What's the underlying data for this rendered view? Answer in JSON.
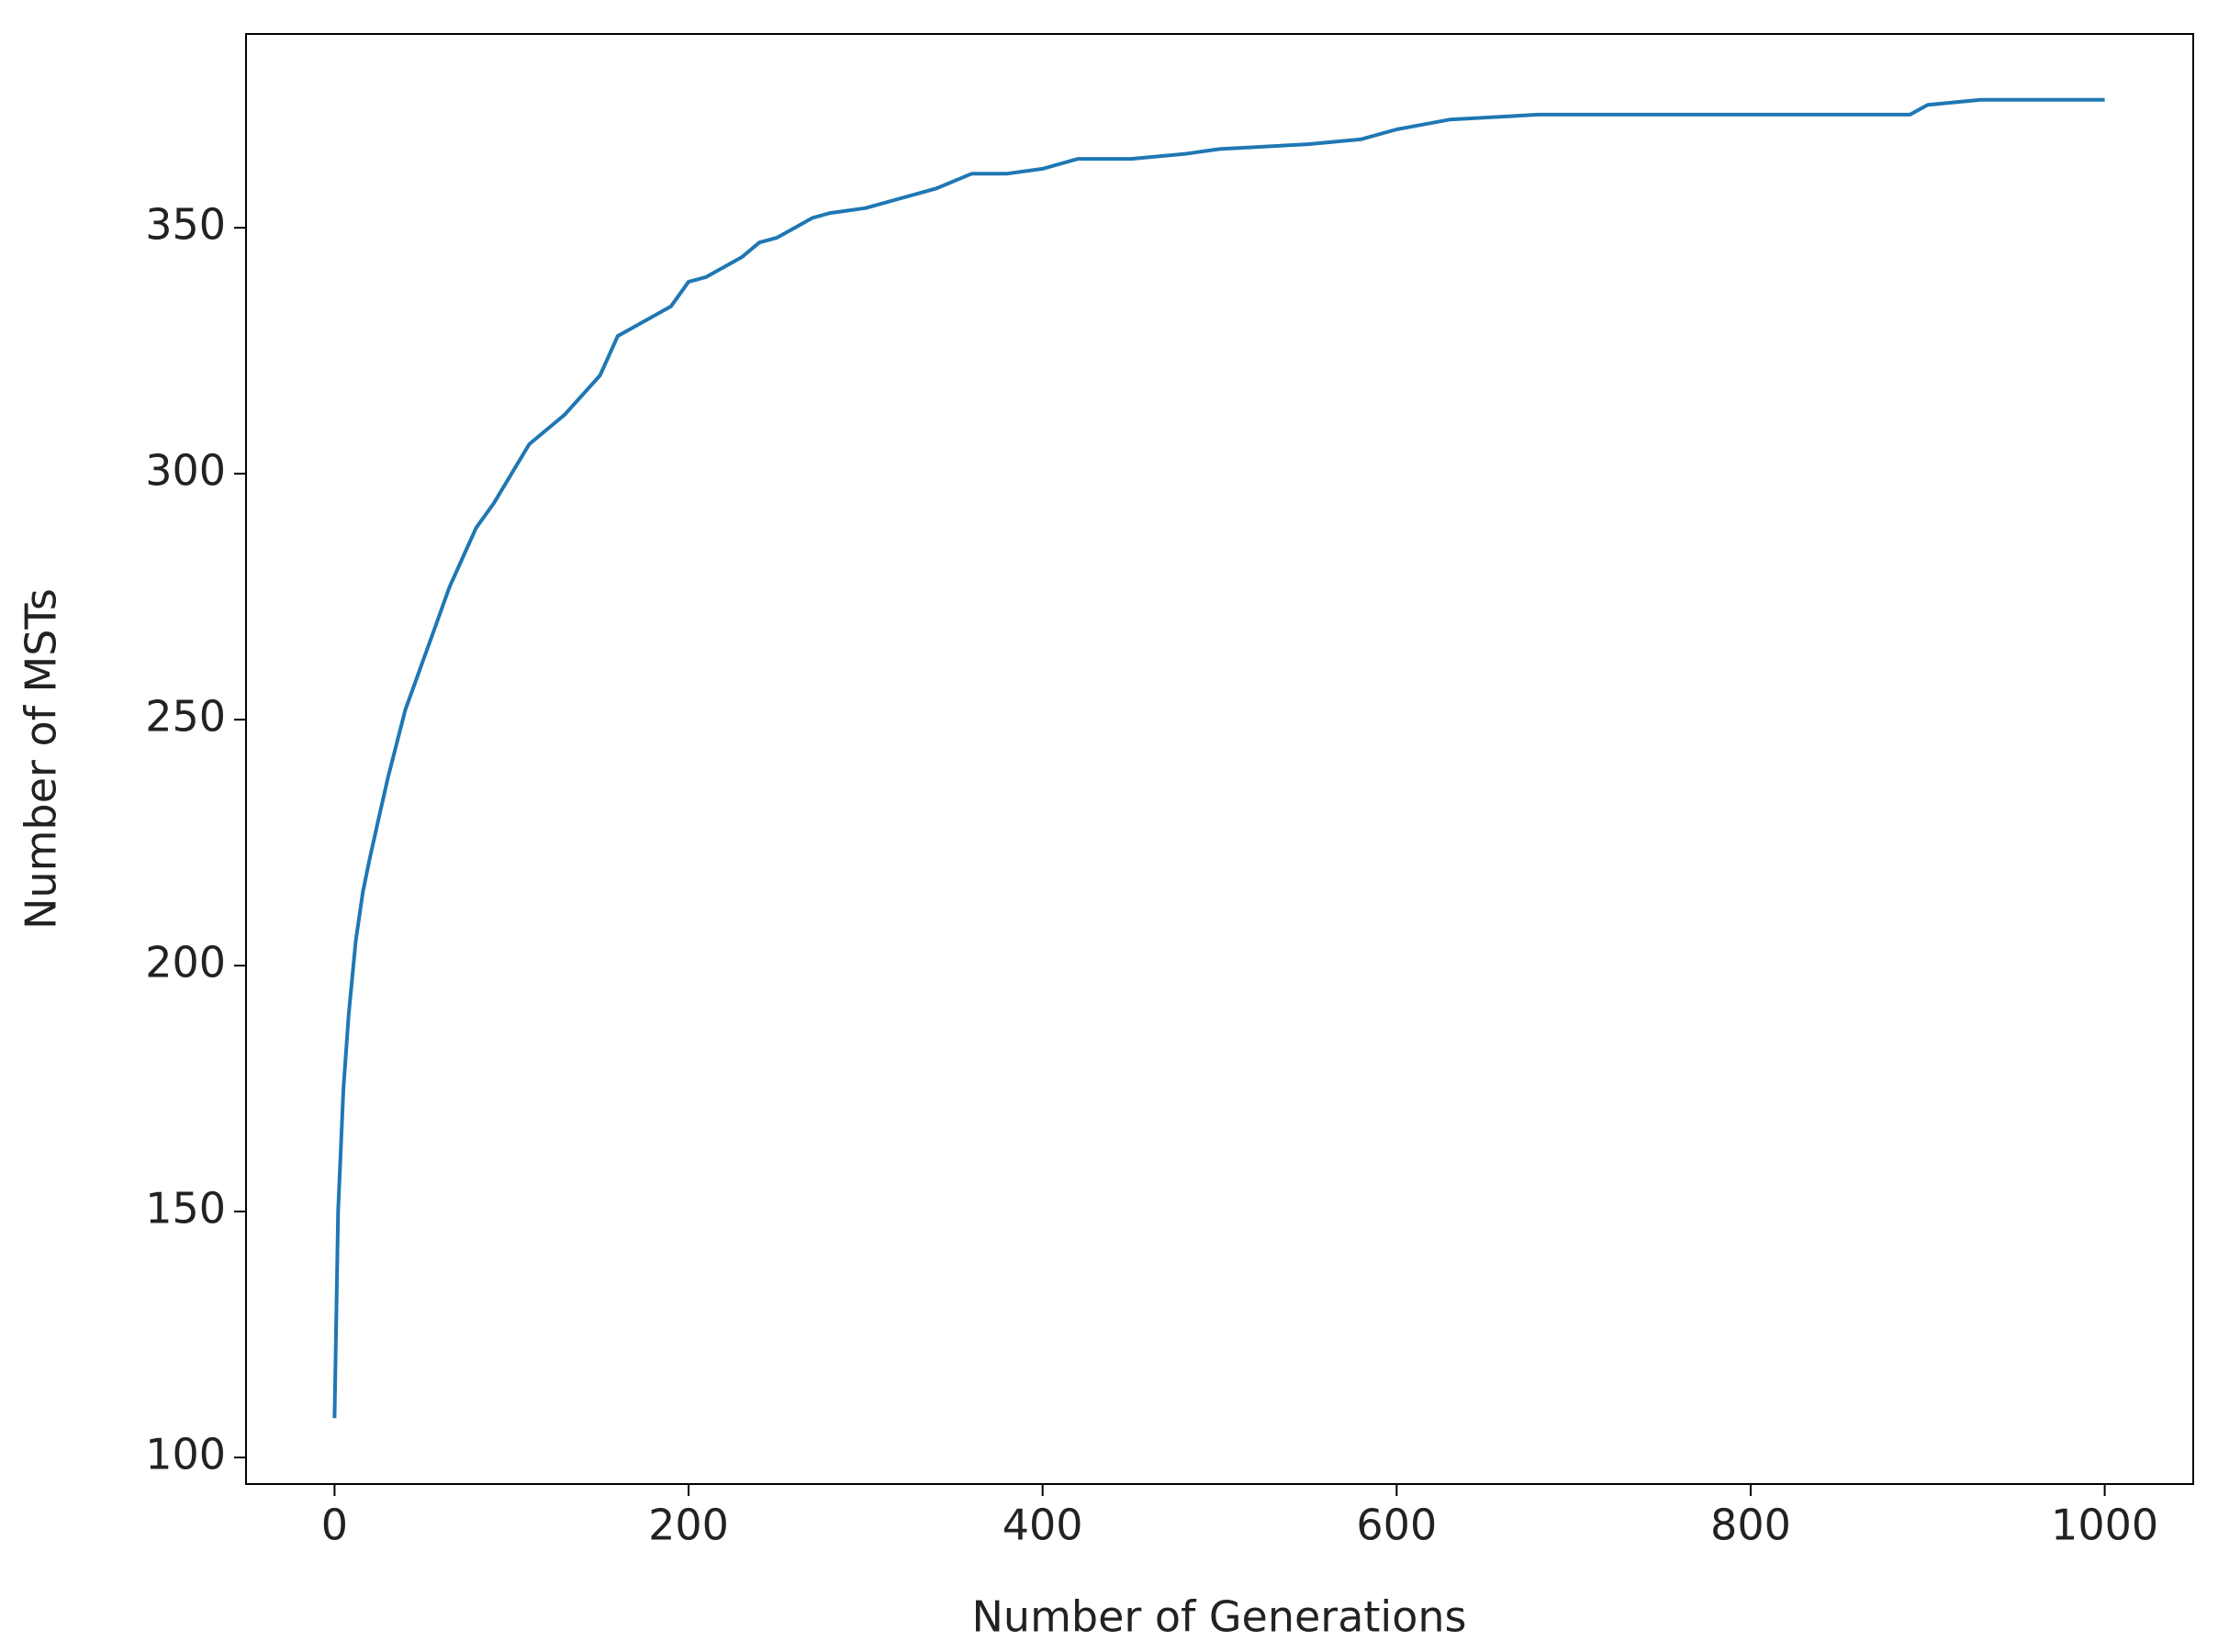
{
  "chart_data": {
    "type": "line",
    "xlabel": "Number of Generations",
    "ylabel": "Number of MSTs",
    "x": [
      0,
      2,
      5,
      8,
      12,
      16,
      20,
      25,
      30,
      35,
      40,
      45,
      50,
      55,
      60,
      65,
      70,
      75,
      80,
      90,
      100,
      110,
      120,
      130,
      140,
      150,
      160,
      170,
      180,
      190,
      200,
      210,
      220,
      230,
      240,
      250,
      260,
      270,
      280,
      300,
      320,
      340,
      360,
      380,
      400,
      420,
      450,
      480,
      500,
      550,
      580,
      600,
      630,
      680,
      700,
      750,
      800,
      850,
      890,
      900,
      930,
      1000
    ],
    "series": [
      {
        "name": "MSTs",
        "color": "#1f77b4",
        "values": [
          108,
          150,
          175,
          190,
          205,
          215,
          222,
          230,
          238,
          245,
          252,
          257,
          262,
          267,
          272,
          277,
          281,
          285,
          289,
          294,
          300,
          306,
          309,
          312,
          316,
          320,
          328,
          330,
          332,
          334,
          339,
          340,
          342,
          344,
          347,
          348,
          350,
          352,
          353,
          354,
          356,
          358,
          361,
          361,
          362,
          364,
          364,
          365,
          366,
          367,
          368,
          370,
          372,
          373,
          373,
          373,
          373,
          373,
          373,
          375,
          376,
          376
        ]
      }
    ],
    "xlim": [
      -50,
      1050
    ],
    "xticks": [
      0,
      200,
      400,
      600,
      800,
      1000
    ],
    "ylim": [
      94.6,
      389.4
    ],
    "yticks": [
      100,
      150,
      200,
      250,
      300,
      350
    ],
    "grid": false
  }
}
